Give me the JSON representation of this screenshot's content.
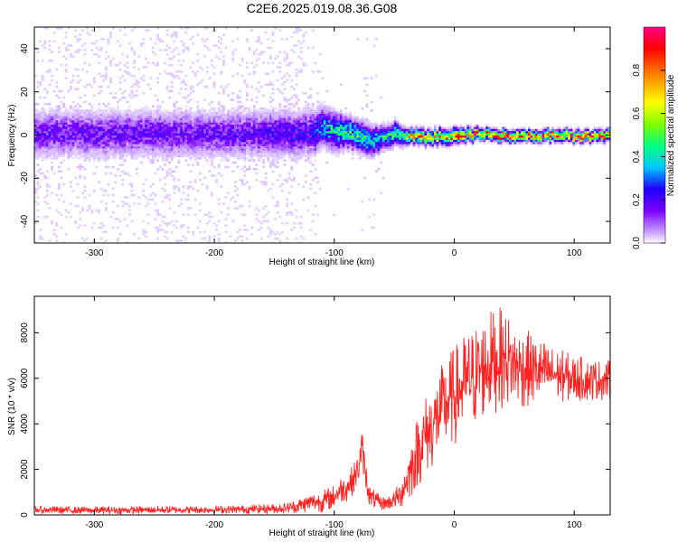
{
  "title": "C2E6.2025.019.08.36.G08",
  "colors": {
    "snr_line": "#ff2020",
    "axis": "#000000",
    "colormap": [
      "#ffffff",
      "#c8a0ff",
      "#7b00ff",
      "#2000ff",
      "#00c8ff",
      "#00ff80",
      "#80ff00",
      "#ffff00",
      "#ff8000",
      "#ff0000",
      "#ff0080"
    ]
  },
  "chart_data": [
    {
      "type": "heatmap",
      "xlabel": "Height of straight line (km)",
      "ylabel": "Frequency (Hz)",
      "xlim": [
        -350,
        130
      ],
      "ylim": [
        -50,
        50
      ],
      "xticks": [
        -300,
        -200,
        -100,
        0,
        100
      ],
      "yticks": [
        -40,
        -20,
        0,
        20,
        40
      ],
      "colorbar": {
        "label": "Normalized spectral amplitude",
        "range": [
          0,
          1
        ],
        "ticks": [
          "0.0",
          "0.2",
          "0.4",
          "0.6",
          "0.8"
        ]
      },
      "profile": {
        "x": [
          -350,
          -300,
          -250,
          -200,
          -150,
          -120,
          -110,
          -100,
          -90,
          -80,
          -70,
          -60,
          -50,
          -40,
          -30,
          -20,
          -10,
          0,
          20,
          40,
          60,
          80,
          100,
          130
        ],
        "center_hz": [
          1,
          1,
          1,
          1,
          1,
          1,
          4,
          3,
          2,
          0,
          -2,
          -1,
          1,
          0,
          0,
          -1,
          0,
          0,
          1,
          0,
          0,
          0,
          0,
          0
        ],
        "core_halfwidth_hz": [
          6,
          6,
          6,
          6,
          6,
          6,
          5,
          5,
          4,
          4,
          4,
          3,
          3,
          2,
          2,
          2,
          2,
          2,
          1.5,
          1.5,
          1.5,
          1.5,
          1.5,
          1.5
        ],
        "peak_amplitude": [
          0.25,
          0.25,
          0.25,
          0.25,
          0.28,
          0.3,
          0.45,
          0.5,
          0.55,
          0.55,
          0.5,
          0.5,
          0.6,
          0.75,
          0.8,
          0.8,
          0.85,
          0.9,
          0.9,
          0.95,
          0.95,
          0.95,
          0.95,
          0.95
        ],
        "noise_floor_level": [
          0.35,
          0.35,
          0.35,
          0.35,
          0.35,
          0.35,
          0.02,
          0.02,
          0.02,
          0.02,
          0.15,
          0.02,
          0.0,
          0.0,
          0.0,
          0.0,
          0.0,
          0.0,
          0.0,
          0.0,
          0.0,
          0.0,
          0.0,
          0.0
        ]
      }
    },
    {
      "type": "line",
      "xlabel": "Height of straight line (km)",
      "ylabel": "SNR (10 * v/v)",
      "xlim": [
        -350,
        130
      ],
      "ylim": [
        0,
        9600
      ],
      "xticks": [
        -300,
        -200,
        -100,
        0,
        100
      ],
      "yticks": [
        0,
        2000,
        4000,
        6000,
        8000
      ],
      "series": [
        {
          "x": [
            -350,
            -300,
            -250,
            -200,
            -160,
            -140,
            -130,
            -120,
            -110,
            -100,
            -95,
            -90,
            -85,
            -80,
            -77,
            -75,
            -72,
            -70,
            -65,
            -60,
            -55,
            -50,
            -45,
            -40,
            -35,
            -30,
            -25,
            -20,
            -15,
            -10,
            -5,
            0,
            5,
            10,
            15,
            20,
            25,
            30,
            35,
            40,
            45,
            50,
            60,
            70,
            80,
            90,
            100,
            110,
            120,
            130
          ],
          "values": [
            220,
            200,
            220,
            230,
            260,
            300,
            400,
            550,
            600,
            800,
            1100,
            1200,
            1500,
            2000,
            3000,
            2200,
            1200,
            800,
            600,
            500,
            550,
            650,
            900,
            1500,
            2200,
            2900,
            3400,
            3800,
            4200,
            4600,
            5000,
            5200,
            5500,
            5800,
            6000,
            6200,
            6500,
            6700,
            6800,
            6900,
            6800,
            6600,
            6400,
            6300,
            6200,
            6100,
            6000,
            5950,
            5950,
            5900
          ],
          "noise_amplitude": [
            130,
            130,
            130,
            130,
            160,
            190,
            260,
            340,
            380,
            430,
            480,
            500,
            520,
            560,
            650,
            560,
            460,
            380,
            300,
            240,
            260,
            320,
            500,
            850,
            1100,
            1300,
            1400,
            1500,
            1550,
            1600,
            1700,
            1700,
            1750,
            1800,
            1800,
            1800,
            1800,
            1800,
            1800,
            1700,
            1600,
            1500,
            1350,
            1200,
            1000,
            900,
            800,
            750,
            700,
            700
          ]
        }
      ]
    }
  ]
}
